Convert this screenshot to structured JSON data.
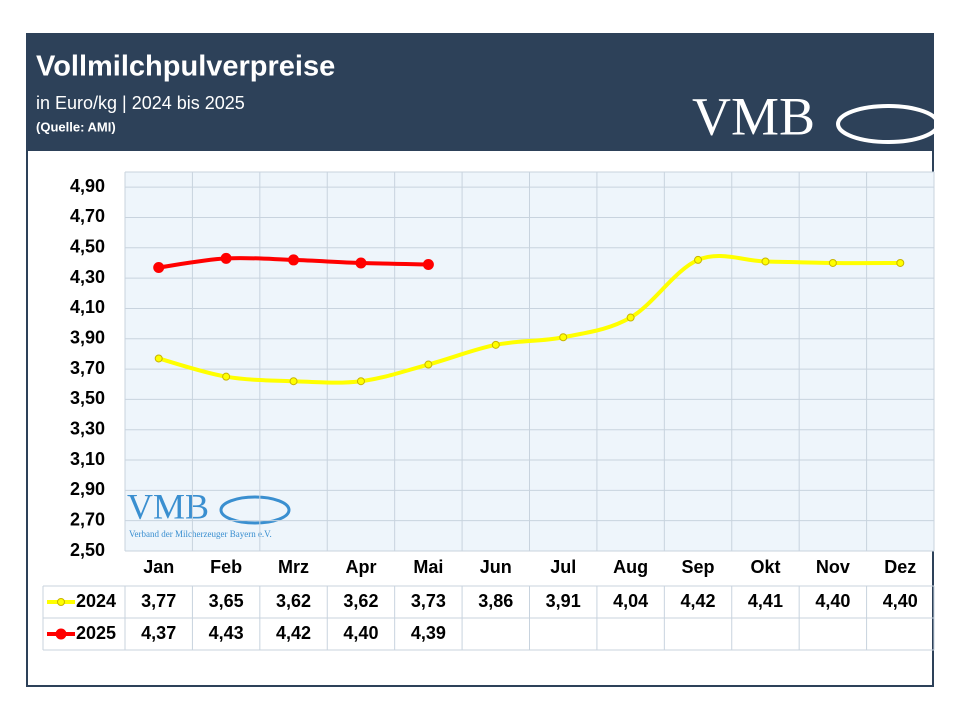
{
  "chart_data": {
    "type": "line",
    "title": "Vollmilchpulverpreise",
    "subtitle": "in Euro/kg | 2024 bis 2025",
    "source": "(Quelle: AMI)",
    "logo": "VMB",
    "watermark": "VMB",
    "watermark_caption": "Verband der Milcherzeuger Bayern e.V.",
    "categories": [
      "Jan",
      "Feb",
      "Mrz",
      "Apr",
      "Mai",
      "Jun",
      "Jul",
      "Aug",
      "Sep",
      "Okt",
      "Nov",
      "Dez"
    ],
    "series": [
      {
        "name": "2024",
        "color": "#ffff00",
        "values": [
          3.77,
          3.65,
          3.62,
          3.62,
          3.73,
          3.86,
          3.91,
          4.04,
          4.42,
          4.41,
          4.4,
          4.4
        ],
        "value_labels": [
          "3,77",
          "3,65",
          "3,62",
          "3,62",
          "3,73",
          "3,86",
          "3,91",
          "4,04",
          "4,42",
          "4,41",
          "4,40",
          "4,40"
        ]
      },
      {
        "name": "2025",
        "color": "#ff0000",
        "values": [
          4.37,
          4.43,
          4.42,
          4.4,
          4.39,
          null,
          null,
          null,
          null,
          null,
          null,
          null
        ],
        "value_labels": [
          "4,37",
          "4,43",
          "4,42",
          "4,40",
          "4,39",
          null,
          null,
          null,
          null,
          null,
          null,
          null
        ]
      }
    ],
    "ylim": [
      2.5,
      5.0
    ],
    "yticks": [
      {
        "value": 2.5,
        "label": "2,50"
      },
      {
        "value": 2.7,
        "label": "2,70"
      },
      {
        "value": 2.9,
        "label": "2,90"
      },
      {
        "value": 3.1,
        "label": "3,10"
      },
      {
        "value": 3.3,
        "label": "3,30"
      },
      {
        "value": 3.5,
        "label": "3,50"
      },
      {
        "value": 3.7,
        "label": "3,70"
      },
      {
        "value": 3.9,
        "label": "3,90"
      },
      {
        "value": 4.1,
        "label": "4,10"
      },
      {
        "value": 4.3,
        "label": "4,30"
      },
      {
        "value": 4.5,
        "label": "4,50"
      },
      {
        "value": 4.7,
        "label": "4,70"
      },
      {
        "value": 4.9,
        "label": "4,90"
      }
    ],
    "grid": true
  }
}
